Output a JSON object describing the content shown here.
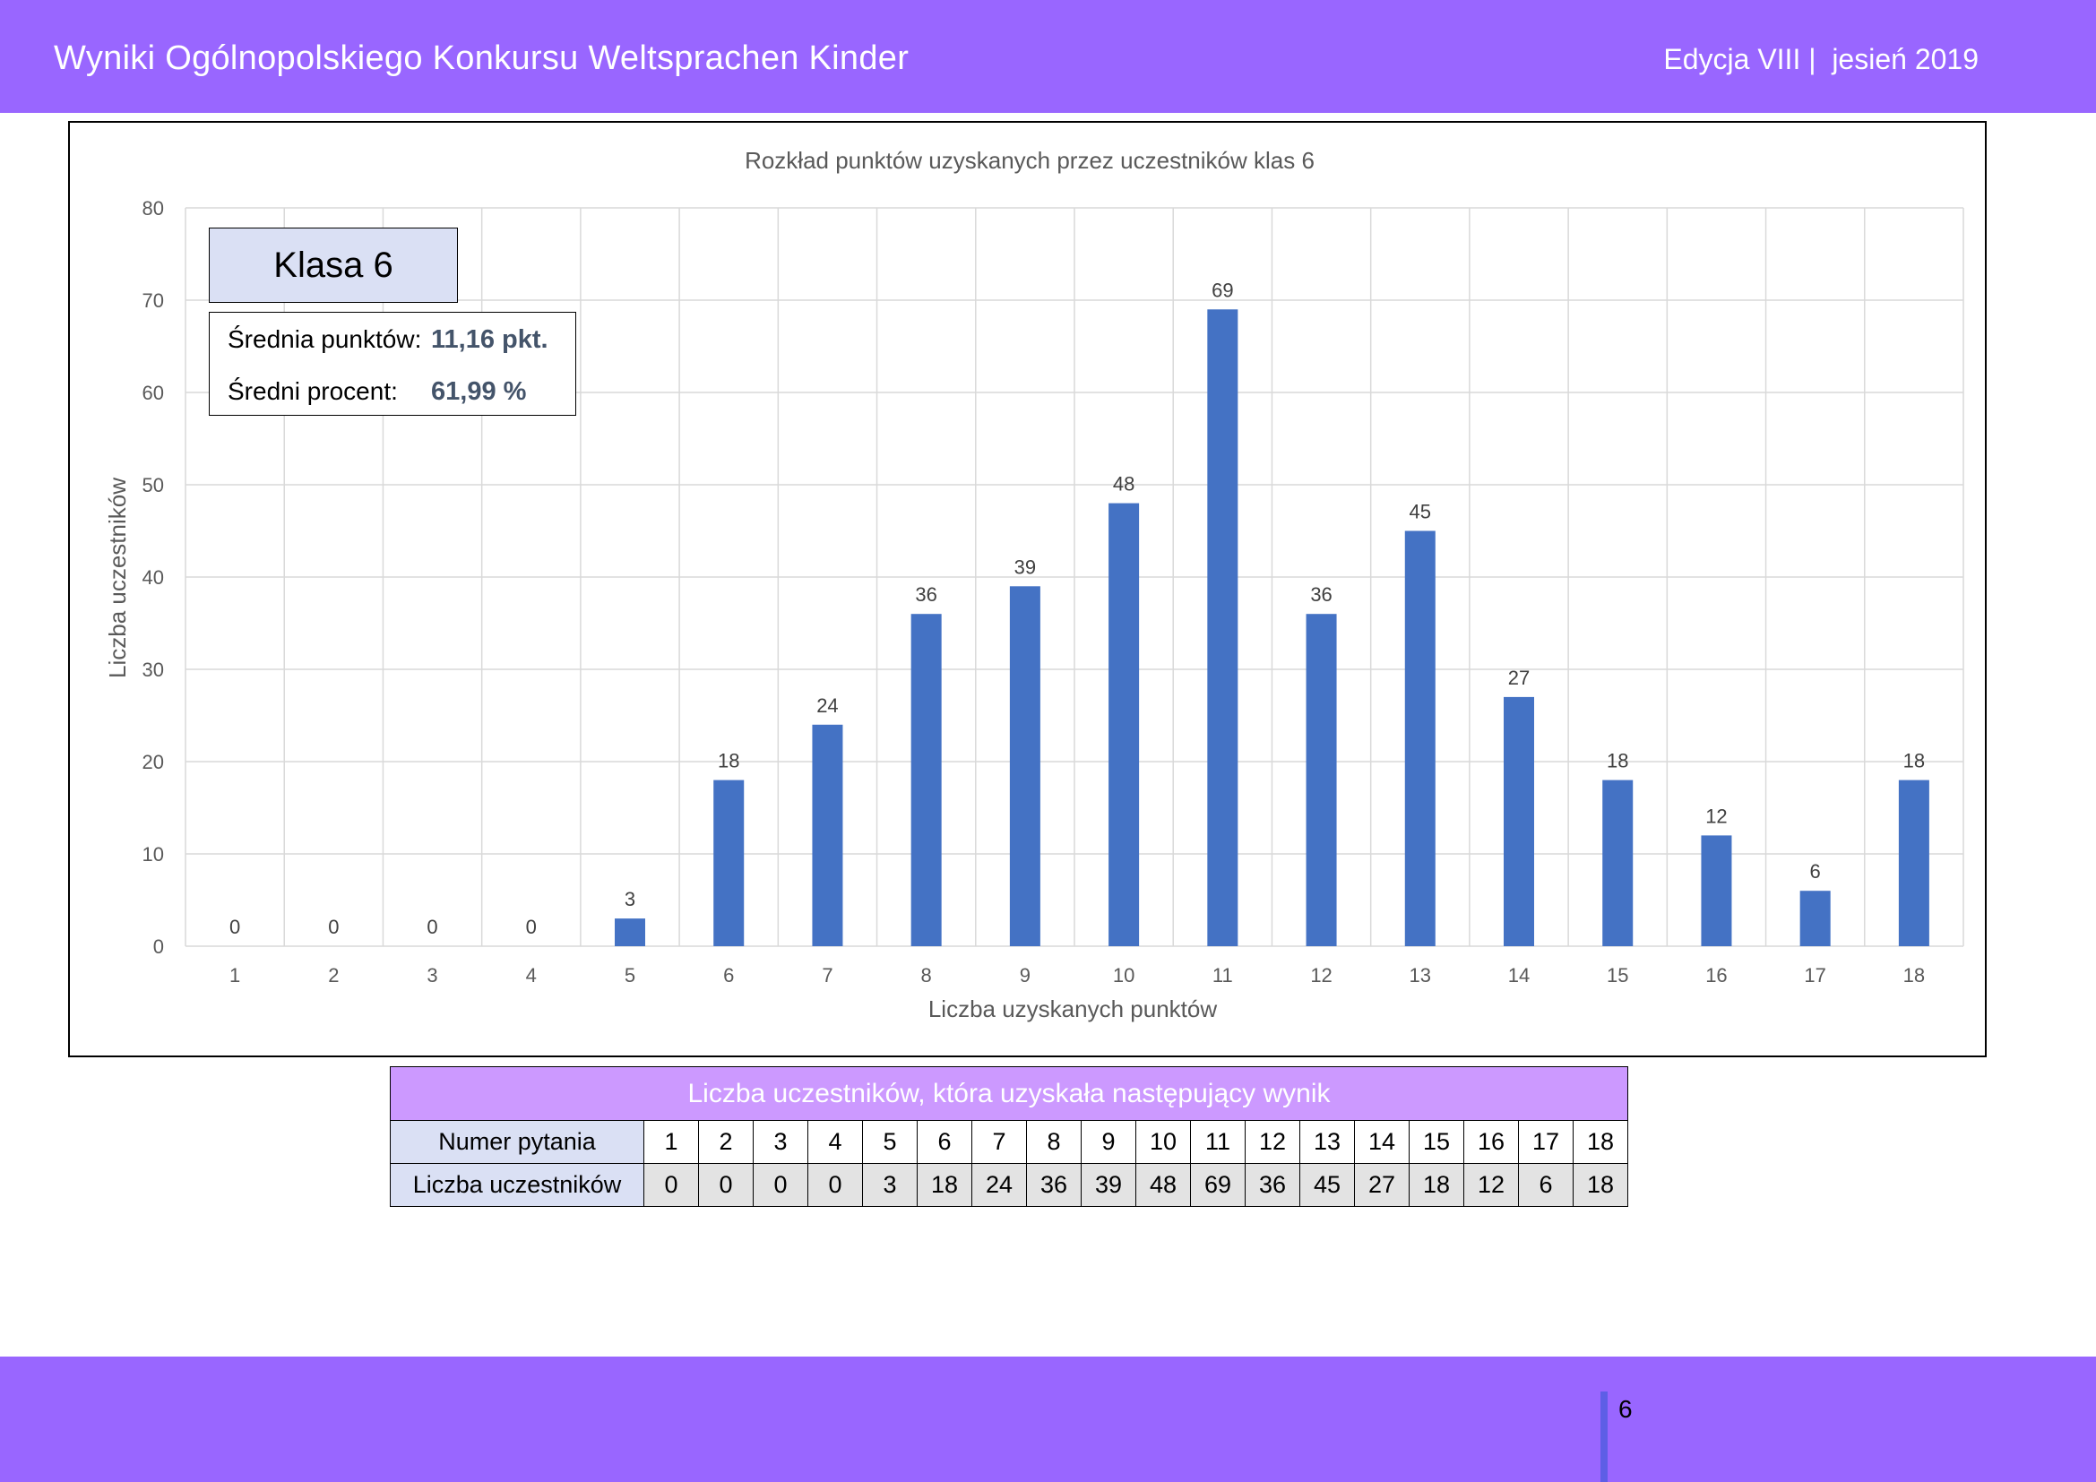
{
  "header": {
    "title": "Wyniki Ogólnopolskiego Konkursu Weltsprachen Kinder",
    "edition": "Edycja VIII |  jesień 2019"
  },
  "legend": {
    "class_label": "Klasa 6",
    "avg_points_label": "Średnia punktów:",
    "avg_points_value": "11,16 pkt.",
    "avg_percent_label": "Średni procent:",
    "avg_percent_value": "61,99 %"
  },
  "chart_data": {
    "type": "bar",
    "title": "Rozkład punktów uzyskanych przez uczestników klas 6",
    "xlabel": "Liczba uzyskanych punktów",
    "ylabel": "Liczba uczestników",
    "categories": [
      "1",
      "2",
      "3",
      "4",
      "5",
      "6",
      "7",
      "8",
      "9",
      "10",
      "11",
      "12",
      "13",
      "14",
      "15",
      "16",
      "17",
      "18"
    ],
    "values": [
      0,
      0,
      0,
      0,
      3,
      18,
      24,
      36,
      39,
      48,
      69,
      36,
      45,
      27,
      18,
      12,
      6,
      18
    ],
    "ylim": [
      0,
      80
    ],
    "yticks": [
      0,
      10,
      20,
      30,
      40,
      50,
      60,
      70,
      80
    ],
    "grid": true,
    "data_labels": true,
    "bar_color": "#4472c4"
  },
  "table": {
    "caption": "Liczba uczestników, która uzyskała następujący wynik",
    "row1_label": "Numer pytania",
    "row2_label": "Liczba uczestników",
    "numbers": [
      "1",
      "2",
      "3",
      "4",
      "5",
      "6",
      "7",
      "8",
      "9",
      "10",
      "11",
      "12",
      "13",
      "14",
      "15",
      "16",
      "17",
      "18"
    ],
    "counts": [
      "0",
      "0",
      "0",
      "0",
      "3",
      "18",
      "24",
      "36",
      "39",
      "48",
      "69",
      "36",
      "45",
      "27",
      "18",
      "12",
      "6",
      "18"
    ]
  },
  "footer": {
    "page_number": "6"
  },
  "colors": {
    "header_bg": "#9966ff",
    "table_caption_bg": "#cc99ff",
    "row_head_bg": "#dae0f4",
    "stat_value": "#44546a"
  }
}
